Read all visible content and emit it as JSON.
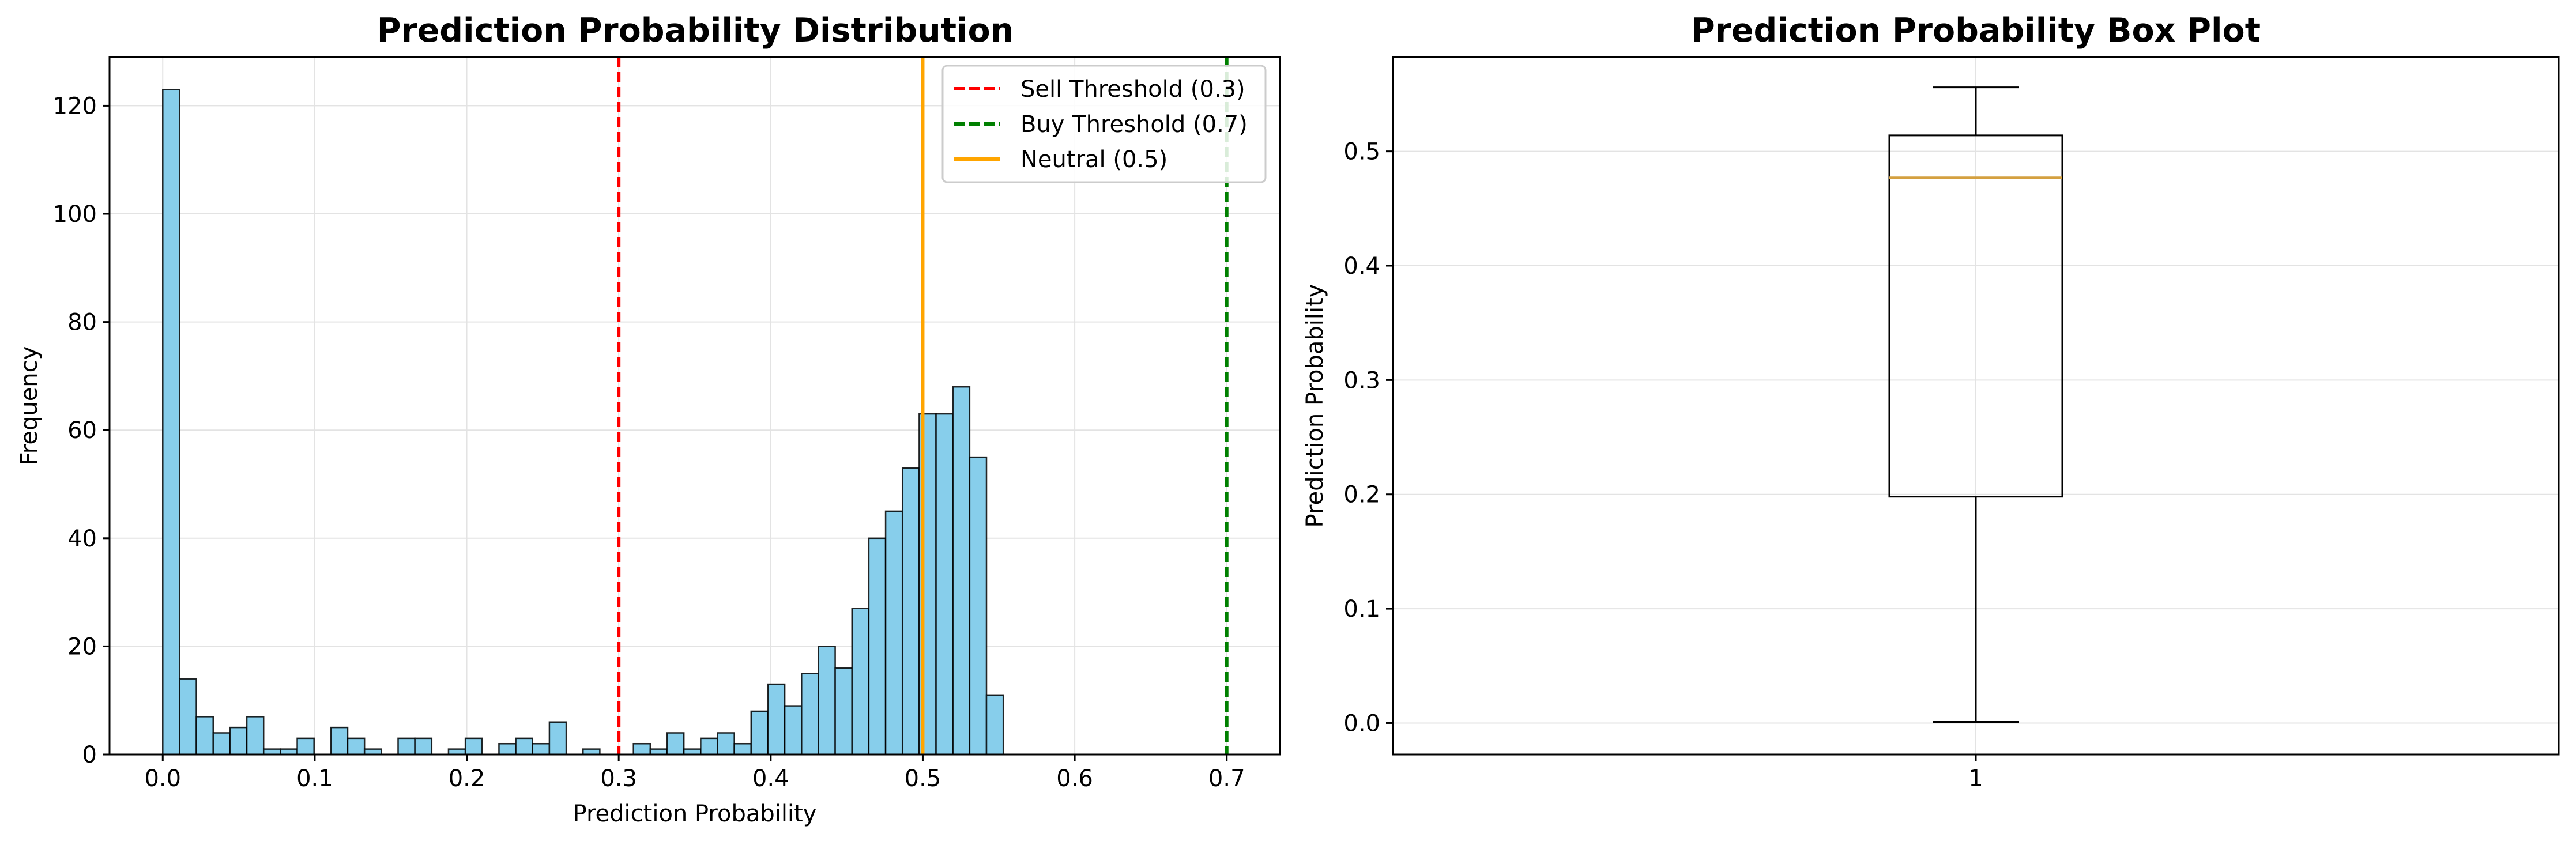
{
  "chart_data": [
    {
      "type": "histogram",
      "title": "Prediction Probability Distribution",
      "xlabel": "Prediction Probability",
      "ylabel": "Frequency",
      "xlim": [
        -0.035,
        0.735
      ],
      "ylim": [
        0,
        129
      ],
      "xticks": [
        0.0,
        0.1,
        0.2,
        0.3,
        0.4,
        0.5,
        0.6,
        0.7
      ],
      "xtick_labels": [
        "0.0",
        "0.1",
        "0.2",
        "0.3",
        "0.4",
        "0.5",
        "0.6",
        "0.7"
      ],
      "yticks": [
        0,
        20,
        40,
        60,
        80,
        100,
        120
      ],
      "ytick_labels": [
        "0",
        "20",
        "40",
        "60",
        "80",
        "100",
        "120"
      ],
      "grid": true,
      "bin_width": 0.01106,
      "bin_start": 0.0,
      "counts": [
        123,
        14,
        7,
        4,
        5,
        7,
        1,
        1,
        3,
        0,
        5,
        3,
        1,
        0,
        3,
        3,
        0,
        1,
        3,
        0,
        2,
        3,
        2,
        6,
        0,
        1,
        0,
        0,
        2,
        1,
        4,
        1,
        3,
        4,
        2,
        8,
        13,
        9,
        15,
        20,
        16,
        27,
        40,
        45,
        53,
        63,
        63,
        68,
        55,
        11
      ],
      "bar_color": "#87ceeb",
      "bar_edge_color": "#000000",
      "reference_lines": [
        {
          "name": "Sell Threshold (0.3)",
          "x": 0.3,
          "color": "#ff0000",
          "style": "dashed"
        },
        {
          "name": "Buy Threshold (0.7)",
          "x": 0.7,
          "color": "#008000",
          "style": "dashed"
        },
        {
          "name": "Neutral (0.5)",
          "x": 0.5,
          "color": "#ffa500",
          "style": "solid"
        }
      ],
      "legend_position": "top-right"
    },
    {
      "type": "boxplot",
      "title": "Prediction Probability Box Plot",
      "ylabel": "Prediction Probability",
      "categories": [
        "1"
      ],
      "ylim": [
        -0.0275,
        0.5825
      ],
      "yticks": [
        0.0,
        0.1,
        0.2,
        0.3,
        0.4,
        0.5
      ],
      "ytick_labels": [
        "0.0",
        "0.1",
        "0.2",
        "0.3",
        "0.4",
        "0.5"
      ],
      "grid": true,
      "box": {
        "whisker_low": 0.001,
        "q1": 0.198,
        "median": 0.477,
        "q3": 0.514,
        "whisker_high": 0.556
      },
      "median_color": "#d4a040"
    }
  ]
}
